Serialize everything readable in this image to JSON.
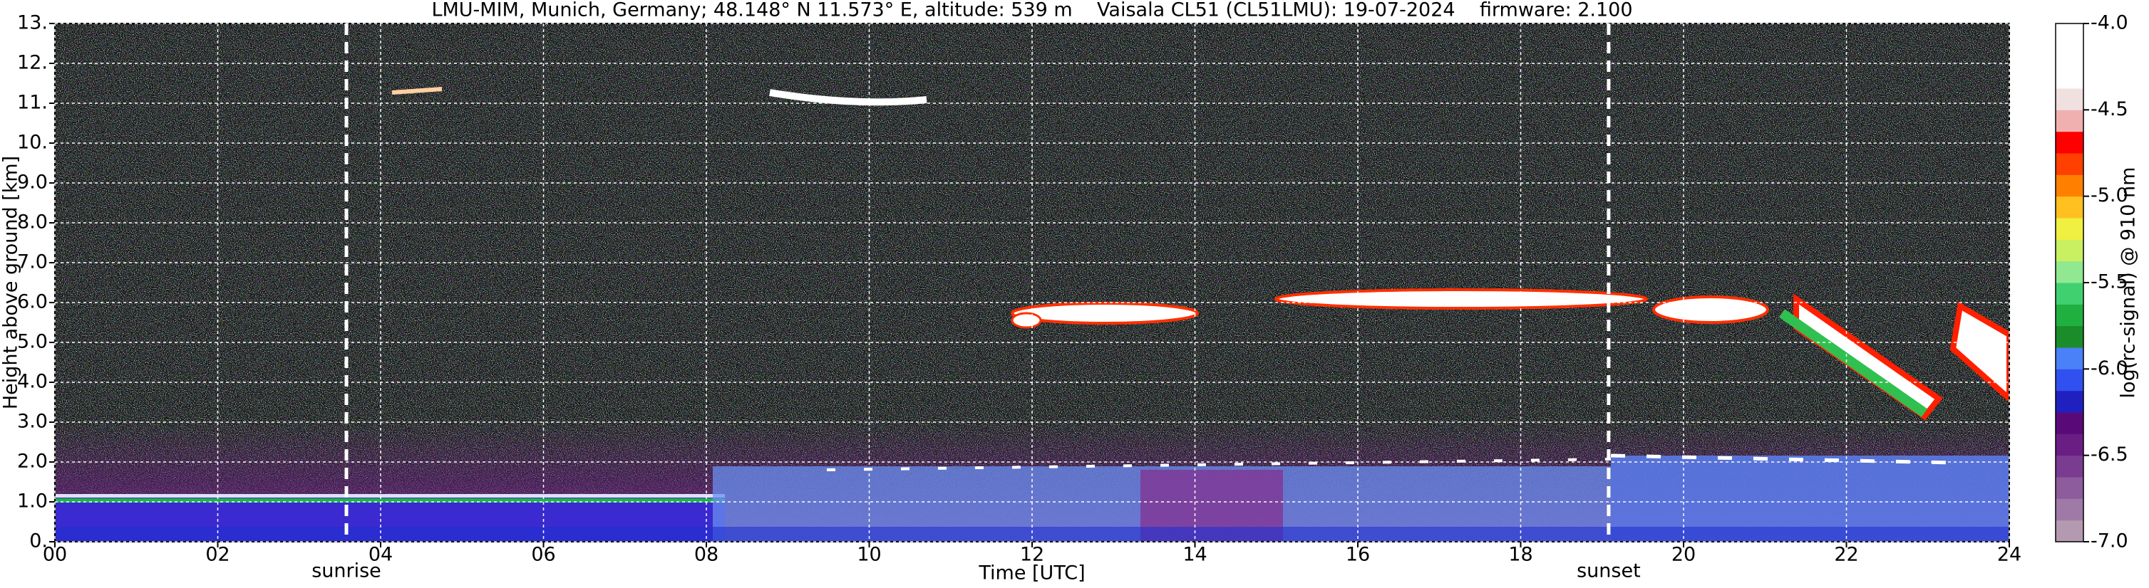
{
  "chart_data": {
    "type": "heatmap",
    "title": "LMU-MIM, Munich, Germany; 48.148° N 11.573° E, altitude: 539 m    Vaisala CL51 (CL51LMU): 19-07-2024    firmware: 2.100",
    "xlabel": "Time [UTC]",
    "ylabel": "Height above ground [km]",
    "xlim": [
      0,
      24
    ],
    "ylim": [
      0,
      13
    ],
    "xticks": [
      {
        "value": 0,
        "label": "00"
      },
      {
        "value": 2,
        "label": "02"
      },
      {
        "value": 4,
        "label": "04"
      },
      {
        "value": 6,
        "label": "06"
      },
      {
        "value": 8,
        "label": "08"
      },
      10,
      12,
      14,
      16,
      18,
      20,
      22,
      24
    ],
    "yticks": [
      {
        "value": 0,
        "label": "0."
      },
      {
        "value": 1,
        "label": "1.0"
      },
      {
        "value": 2,
        "label": "2.0"
      },
      {
        "value": 3,
        "label": "3.0"
      },
      {
        "value": 4,
        "label": "4.0"
      },
      {
        "value": 5,
        "label": "5.0"
      },
      {
        "value": 6,
        "label": "6.0"
      },
      {
        "value": 7,
        "label": "7.0"
      },
      {
        "value": 8,
        "label": "8.0"
      },
      {
        "value": 9,
        "label": "9.0"
      },
      {
        "value": 10,
        "label": "10."
      },
      {
        "value": 11,
        "label": "11."
      },
      {
        "value": 12,
        "label": "12."
      },
      {
        "value": 13,
        "label": "13."
      }
    ],
    "grid": true,
    "annotations": [
      {
        "text": "sunrise",
        "x": 3.58
      },
      {
        "text": "sunset",
        "x": 19.08
      }
    ],
    "colorbar": {
      "label": "log(rc-signal) @ 910 nm",
      "lim": [
        -7,
        -4
      ],
      "ticks": [
        {
          "value": -4,
          "label": "-4.0"
        },
        -4.5,
        {
          "value": -5,
          "label": "-5.0"
        },
        -5.5,
        {
          "value": -6,
          "label": "-6.0"
        },
        -6.5,
        {
          "value": -7,
          "label": "-7.0"
        }
      ],
      "colors": [
        "#b39ab0",
        "#a07aa6",
        "#8d5c9c",
        "#7a3c90",
        "#6a1e84",
        "#5a0a78",
        "#2020c0",
        "#3050f0",
        "#4a80f8",
        "#1a8c2a",
        "#20b040",
        "#40d070",
        "#90e890",
        "#c8f060",
        "#f0f040",
        "#ffc020",
        "#ff8000",
        "#ff4000",
        "#ff0000",
        "#f0b0b0",
        "#f0e0e0",
        "#ffffff",
        "#ffffff",
        "#ffffff"
      ]
    }
  }
}
